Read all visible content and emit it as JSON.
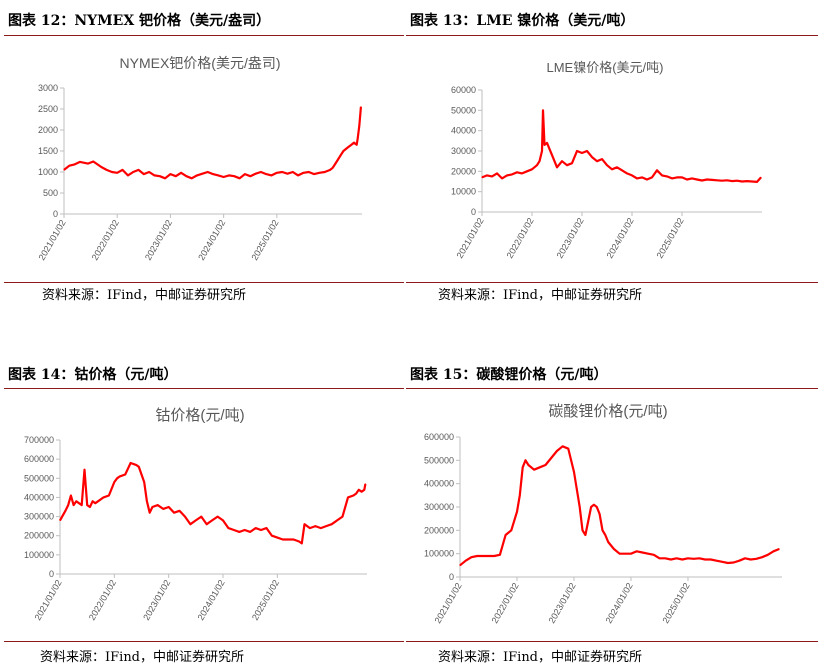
{
  "source_note": "资料来源：IFind，中邮证券研究所",
  "panels": [
    {
      "heading": "图表 12：NYMEX 钯价格（美元/盎司）"
    },
    {
      "heading": "图表 13：LME 镍价格（美元/吨）"
    },
    {
      "heading": "图表 14：钴价格（元/吨）"
    },
    {
      "heading": "图表 15：碳酸锂价格（元/吨）"
    }
  ],
  "chart_data": [
    {
      "type": "line",
      "title": "NYMEX钯价格(美元/盎司)",
      "xlabel": "",
      "ylabel": "",
      "ylim": [
        0,
        3000
      ],
      "yticks": [
        "0",
        "500",
        "1000",
        "1500",
        "2000",
        "2500",
        "3000"
      ],
      "xticks": [
        "2021/01/02",
        "2022/01/02",
        "2023/01/02",
        "2024/01/02",
        "2025/01/02"
      ],
      "xlim": [
        0,
        5.6
      ],
      "color": "#ff0000",
      "series": [
        {
          "x": [
            0,
            0.1,
            0.2,
            0.3,
            0.45,
            0.55,
            0.7,
            0.8,
            0.9,
            1.0,
            1.1,
            1.2,
            1.3,
            1.4,
            1.5,
            1.6,
            1.7,
            1.8,
            1.9,
            2.0,
            2.1,
            2.2,
            2.3,
            2.4,
            2.5,
            2.6,
            2.7,
            2.8,
            2.9,
            3.0,
            3.1,
            3.2,
            3.3,
            3.4,
            3.5,
            3.6,
            3.7,
            3.8,
            3.9,
            4.0,
            4.1,
            4.2,
            4.3,
            4.4,
            4.5,
            4.6,
            4.7,
            4.8,
            4.9,
            5.0,
            5.05,
            5.1,
            5.15,
            5.2,
            5.25,
            5.3,
            5.35,
            5.4,
            5.45,
            5.5,
            5.52,
            5.55,
            5.57,
            5.58
          ],
          "y": [
            1050,
            1150,
            1180,
            1240,
            1200,
            1250,
            1120,
            1050,
            1000,
            980,
            1050,
            920,
            1000,
            1050,
            950,
            1000,
            920,
            900,
            850,
            950,
            900,
            980,
            900,
            850,
            920,
            960,
            1000,
            950,
            920,
            880,
            920,
            900,
            850,
            950,
            900,
            960,
            1000,
            950,
            920,
            980,
            1000,
            960,
            1000,
            920,
            980,
            1000,
            950,
            980,
            1000,
            1050,
            1100,
            1200,
            1300,
            1400,
            1500,
            1550,
            1600,
            1650,
            1700,
            1650,
            1800,
            2100,
            2400,
            2550
          ]
        }
      ]
    },
    {
      "type": "line",
      "title": "LME镍价格(美元/吨)",
      "xlabel": "",
      "ylabel": "",
      "ylim": [
        0,
        60000
      ],
      "yticks": [
        "0",
        "10000",
        "20000",
        "30000",
        "40000",
        "50000",
        "60000"
      ],
      "xticks": [
        "2021/01/02",
        "2022/01/02",
        "2023/01/02",
        "2024/01/02",
        "2025/01/02"
      ],
      "xlim": [
        0,
        5.6
      ],
      "color": "#ff0000",
      "series": [
        {
          "x": [
            0,
            0.1,
            0.2,
            0.3,
            0.4,
            0.5,
            0.6,
            0.7,
            0.8,
            0.9,
            1.0,
            1.1,
            1.15,
            1.2,
            1.22,
            1.25,
            1.3,
            1.4,
            1.5,
            1.6,
            1.7,
            1.8,
            1.9,
            2.0,
            2.1,
            2.2,
            2.3,
            2.4,
            2.5,
            2.6,
            2.7,
            2.8,
            2.9,
            3.0,
            3.1,
            3.2,
            3.3,
            3.4,
            3.5,
            3.6,
            3.7,
            3.8,
            3.9,
            4.0,
            4.1,
            4.2,
            4.3,
            4.4,
            4.5,
            4.6,
            4.7,
            4.8,
            4.9,
            5.0,
            5.1,
            5.2,
            5.3,
            5.4,
            5.5,
            5.58
          ],
          "y": [
            17000,
            18000,
            17500,
            19000,
            16500,
            18000,
            18500,
            19500,
            19000,
            20000,
            21000,
            23000,
            25000,
            30000,
            50000,
            33000,
            34000,
            28000,
            22000,
            25000,
            23000,
            24000,
            30000,
            29000,
            30000,
            27000,
            25000,
            26000,
            23000,
            21000,
            22000,
            20500,
            19000,
            18000,
            16500,
            17000,
            16000,
            17000,
            20500,
            18000,
            17500,
            16500,
            17000,
            17000,
            16000,
            16500,
            16000,
            15500,
            16000,
            15800,
            15600,
            15400,
            15600,
            15200,
            15400,
            15000,
            15200,
            15000,
            14800,
            17000
          ]
        }
      ]
    },
    {
      "type": "line",
      "title": "钴价格(元/吨)",
      "xlabel": "",
      "ylabel": "",
      "ylim": [
        0,
        700000
      ],
      "yticks": [
        "0",
        "100000",
        "200000",
        "300000",
        "400000",
        "500000",
        "600000",
        "700000"
      ],
      "xticks": [
        "2021/01/02",
        "2022/01/02",
        "2023/01/02",
        "2024/01/02",
        "2025/01/02"
      ],
      "xlim": [
        0,
        5.65
      ],
      "color": "#ff0000",
      "series": [
        {
          "x": [
            0,
            0.1,
            0.15,
            0.2,
            0.25,
            0.3,
            0.35,
            0.4,
            0.45,
            0.5,
            0.55,
            0.6,
            0.65,
            0.7,
            0.8,
            0.9,
            1.0,
            1.05,
            1.1,
            1.2,
            1.3,
            1.4,
            1.45,
            1.55,
            1.6,
            1.65,
            1.7,
            1.8,
            1.9,
            2.0,
            2.1,
            2.2,
            2.3,
            2.4,
            2.5,
            2.6,
            2.7,
            2.8,
            2.9,
            3.0,
            3.1,
            3.2,
            3.3,
            3.4,
            3.5,
            3.6,
            3.7,
            3.8,
            3.9,
            4.0,
            4.1,
            4.2,
            4.3,
            4.4,
            4.45,
            4.5,
            4.6,
            4.7,
            4.8,
            4.9,
            5.0,
            5.05,
            5.1,
            5.2,
            5.3,
            5.4,
            5.45,
            5.5,
            5.55,
            5.6,
            5.62
          ],
          "y": [
            280000,
            330000,
            360000,
            410000,
            360000,
            380000,
            370000,
            360000,
            545000,
            360000,
            350000,
            380000,
            370000,
            380000,
            400000,
            410000,
            480000,
            500000,
            510000,
            520000,
            580000,
            570000,
            560000,
            480000,
            380000,
            320000,
            350000,
            360000,
            340000,
            350000,
            320000,
            330000,
            300000,
            260000,
            280000,
            300000,
            260000,
            280000,
            300000,
            280000,
            240000,
            230000,
            220000,
            230000,
            220000,
            240000,
            230000,
            240000,
            200000,
            190000,
            180000,
            180000,
            180000,
            170000,
            160000,
            260000,
            240000,
            250000,
            240000,
            250000,
            260000,
            270000,
            280000,
            300000,
            400000,
            410000,
            420000,
            440000,
            430000,
            440000,
            470000
          ]
        }
      ]
    },
    {
      "type": "line",
      "title": "碳酸锂价格(元/吨)",
      "xlabel": "",
      "ylabel": "",
      "ylim": [
        0,
        600000
      ],
      "yticks": [
        "0",
        "100000",
        "200000",
        "300000",
        "400000",
        "500000",
        "600000"
      ],
      "xticks": [
        "2021/01/02",
        "2022/01/02",
        "2023/01/02",
        "2024/01/02",
        "2025/01/02"
      ],
      "xlim": [
        0,
        5.65
      ],
      "color": "#ff0000",
      "series": [
        {
          "x": [
            0,
            0.1,
            0.2,
            0.3,
            0.4,
            0.5,
            0.6,
            0.7,
            0.8,
            0.9,
            1.0,
            1.05,
            1.1,
            1.15,
            1.2,
            1.3,
            1.4,
            1.5,
            1.6,
            1.7,
            1.8,
            1.9,
            2.0,
            2.1,
            2.15,
            2.2,
            2.3,
            2.35,
            2.4,
            2.45,
            2.5,
            2.55,
            2.6,
            2.7,
            2.8,
            2.9,
            3.0,
            3.1,
            3.2,
            3.3,
            3.4,
            3.5,
            3.6,
            3.7,
            3.8,
            3.9,
            4.0,
            4.1,
            4.2,
            4.3,
            4.4,
            4.5,
            4.6,
            4.7,
            4.8,
            4.9,
            5.0,
            5.1,
            5.2,
            5.3,
            5.4,
            5.5,
            5.6
          ],
          "y": [
            50000,
            70000,
            85000,
            90000,
            90000,
            90000,
            90000,
            95000,
            180000,
            200000,
            280000,
            350000,
            470000,
            500000,
            480000,
            460000,
            470000,
            480000,
            510000,
            540000,
            560000,
            550000,
            450000,
            300000,
            200000,
            180000,
            300000,
            310000,
            300000,
            270000,
            200000,
            180000,
            150000,
            120000,
            100000,
            100000,
            100000,
            110000,
            105000,
            100000,
            95000,
            80000,
            80000,
            75000,
            80000,
            75000,
            80000,
            78000,
            80000,
            75000,
            75000,
            70000,
            65000,
            60000,
            62000,
            70000,
            80000,
            75000,
            78000,
            85000,
            95000,
            110000,
            120000
          ]
        }
      ]
    }
  ]
}
